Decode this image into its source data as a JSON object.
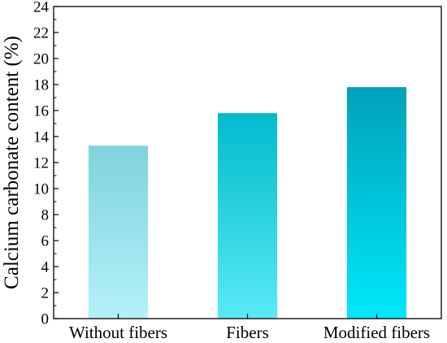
{
  "chart_data": {
    "type": "bar",
    "categories": [
      "Without fibers",
      "Fibers",
      "Modified fibers"
    ],
    "values": [
      13.3,
      15.8,
      17.8
    ],
    "title": "",
    "xlabel": "",
    "ylabel": "Calcium carbonate content (%)",
    "ylim": [
      0,
      24
    ],
    "yticks": [
      0,
      2,
      4,
      6,
      8,
      10,
      12,
      14,
      16,
      18,
      20,
      22,
      24
    ],
    "grid": false,
    "bar_colors": [
      {
        "top": "#7fd3dc",
        "bottom": "#b3f1fa"
      },
      {
        "top": "#00bccb",
        "bottom": "#59e9f6"
      },
      {
        "top": "#00a2b8",
        "bottom": "#00e7fb"
      }
    ]
  }
}
